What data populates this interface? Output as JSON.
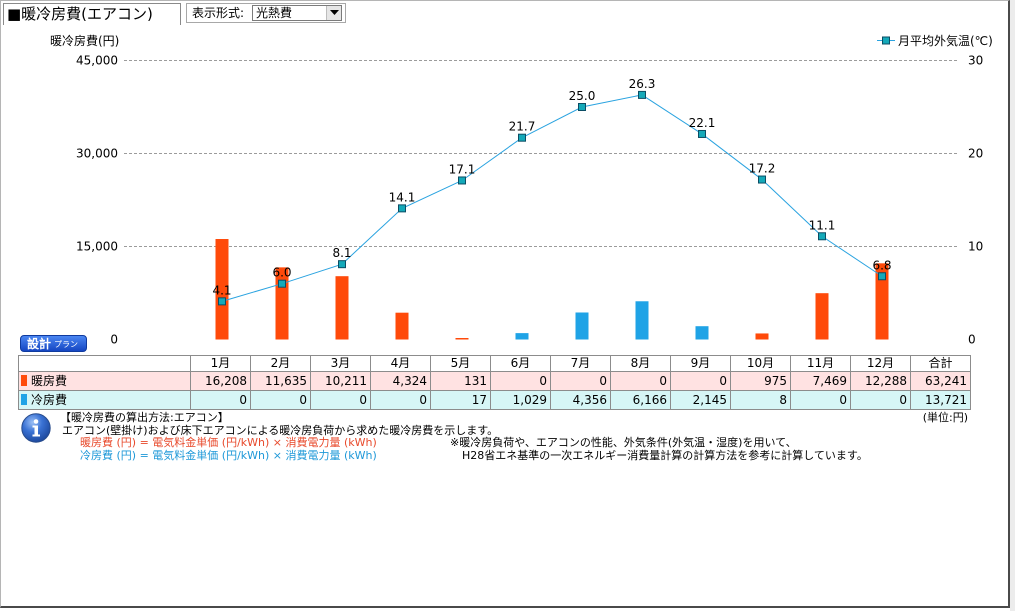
{
  "panel": {
    "title": "■暖冷房費(エアコン)"
  },
  "display_format": {
    "label": "表示形式:",
    "selected": "光熱費",
    "dropdown_icon": "chevron-down-icon"
  },
  "badge": {
    "main": "設計",
    "sub": "プラン"
  },
  "chart_data": {
    "type": "bar",
    "categories": [
      "1月",
      "2月",
      "3月",
      "4月",
      "5月",
      "6月",
      "7月",
      "8月",
      "9月",
      "10月",
      "11月",
      "12月"
    ],
    "series": [
      {
        "name": "暖房費",
        "type": "bar",
        "axis": "left",
        "color": "#FF4A0A",
        "values": [
          16208,
          11635,
          10211,
          4324,
          131,
          0,
          0,
          0,
          0,
          975,
          7469,
          12288
        ]
      },
      {
        "name": "冷房費",
        "type": "bar",
        "axis": "left",
        "color": "#1FA3E6",
        "values": [
          0,
          0,
          0,
          0,
          17,
          1029,
          4356,
          6166,
          2145,
          8,
          0,
          0
        ]
      },
      {
        "name": "月平均外気温(℃)",
        "type": "line",
        "axis": "right",
        "color": "#2AA3E0",
        "marker_color": "#14A9B9",
        "values": [
          4.1,
          6.0,
          8.1,
          14.1,
          17.1,
          21.7,
          25.0,
          26.3,
          22.1,
          17.2,
          11.1,
          6.8
        ]
      }
    ],
    "ylabel": "暖冷房費(円)",
    "ylim": [
      0,
      45000
    ],
    "yticks": [
      0,
      15000,
      30000,
      45000
    ],
    "y2lim": [
      0,
      30
    ],
    "y2ticks": [
      0,
      10,
      20,
      30
    ],
    "grid": true,
    "legend": "top-right"
  },
  "table": {
    "total_header": "合計",
    "rows": [
      {
        "cells": [
          "16,208",
          "11,635",
          "10,211",
          "4,324",
          "131",
          "0",
          "0",
          "0",
          "0",
          "975",
          "7,469",
          "12,288",
          "63,241"
        ],
        "background": "#FFE2E2"
      },
      {
        "cells": [
          "0",
          "0",
          "0",
          "0",
          "17",
          "1,029",
          "4,356",
          "6,166",
          "2,145",
          "8",
          "0",
          "0",
          "13,721"
        ],
        "background": "#D6F6F6"
      }
    ]
  },
  "notes": {
    "icon": "info-icon",
    "heading": "【暖冷房費の算出方法:エアコン】",
    "unit": "(単位:円)",
    "description": "エアコン(壁掛け)および床下エアコンによる暖冷房負荷から求めた暖冷房費を示します。",
    "heating_formula": "暖房費 (円) = 電気料金単価 (円/kWh) × 消費電力量 (kWh)",
    "heating_formula_color": "#E84A2C",
    "cooling_formula": "冷房費 (円) = 電気料金単価 (円/kWh) × 消費電力量 (kWh)",
    "cooling_formula_color": "#1E98D8",
    "remark_1": "※暖冷房負荷や、エアコンの性能、外気条件(外気温・湿度)を用いて、",
    "remark_2": "H28省エネ基準の一次エネルギー消費量計算の計算方法を参考に計算しています。"
  }
}
